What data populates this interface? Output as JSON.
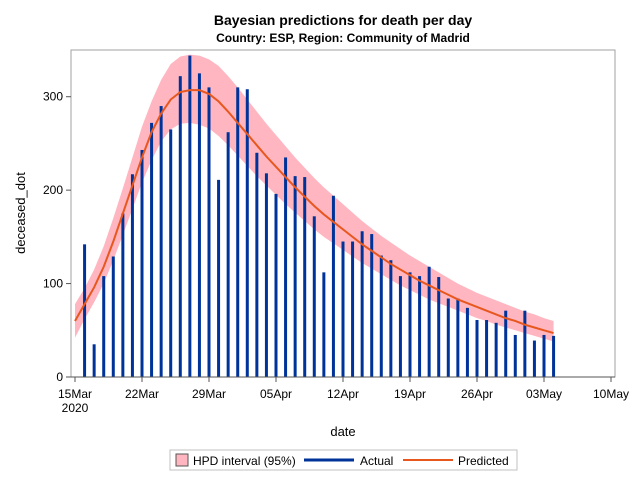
{
  "chart_data": {
    "type": "bar+line",
    "title": "Bayesian predictions for death per day",
    "subtitle": "Country: ESP, Region: Community of Madrid",
    "xlabel": "date",
    "ylabel": "deceased_dot",
    "ylim": [
      0,
      350
    ],
    "xlim": [
      "2020-03-15",
      "2020-05-10"
    ],
    "yticks": [
      0,
      100,
      200,
      300
    ],
    "xticks": [
      {
        "date": "2020-03-15",
        "label": "15Mar",
        "sub": "2020"
      },
      {
        "date": "2020-03-22",
        "label": "22Mar"
      },
      {
        "date": "2020-03-29",
        "label": "29Mar"
      },
      {
        "date": "2020-04-05",
        "label": "05Apr"
      },
      {
        "date": "2020-04-12",
        "label": "12Apr"
      },
      {
        "date": "2020-04-19",
        "label": "19Apr"
      },
      {
        "date": "2020-04-26",
        "label": "26Apr"
      },
      {
        "date": "2020-05-03",
        "label": "03May"
      },
      {
        "date": "2020-05-10",
        "label": "10May"
      }
    ],
    "dates": [
      "2020-03-15",
      "2020-03-16",
      "2020-03-17",
      "2020-03-18",
      "2020-03-19",
      "2020-03-20",
      "2020-03-21",
      "2020-03-22",
      "2020-03-23",
      "2020-03-24",
      "2020-03-25",
      "2020-03-26",
      "2020-03-27",
      "2020-03-28",
      "2020-03-29",
      "2020-03-30",
      "2020-03-31",
      "2020-04-01",
      "2020-04-02",
      "2020-04-03",
      "2020-04-04",
      "2020-04-05",
      "2020-04-06",
      "2020-04-07",
      "2020-04-08",
      "2020-04-09",
      "2020-04-10",
      "2020-04-11",
      "2020-04-12",
      "2020-04-13",
      "2020-04-14",
      "2020-04-15",
      "2020-04-16",
      "2020-04-17",
      "2020-04-18",
      "2020-04-19",
      "2020-04-20",
      "2020-04-21",
      "2020-04-22",
      "2020-04-23",
      "2020-04-24",
      "2020-04-25",
      "2020-04-26",
      "2020-04-27",
      "2020-04-28",
      "2020-04-29",
      "2020-04-30",
      "2020-05-01",
      "2020-05-02",
      "2020-05-03",
      "2020-05-04"
    ],
    "series": [
      {
        "name": "Actual",
        "type": "bar",
        "color": "#003399",
        "values": [
          null,
          142,
          35,
          108,
          129,
          175,
          217,
          243,
          272,
          290,
          265,
          322,
          344,
          325,
          310,
          211,
          262,
          310,
          308,
          240,
          218,
          196,
          235,
          215,
          214,
          172,
          112,
          194,
          145,
          145,
          156,
          153,
          130,
          125,
          108,
          112,
          108,
          118,
          107,
          84,
          84,
          74,
          61,
          61,
          58,
          71,
          45,
          71,
          39,
          45,
          44
        ]
      },
      {
        "name": "Predicted",
        "type": "line",
        "color": "#e8571e",
        "values": [
          60,
          78,
          96,
          118,
          145,
          175,
          205,
          235,
          262,
          282,
          297,
          305,
          307,
          307,
          303,
          295,
          284,
          272,
          260,
          248,
          236,
          225,
          214,
          203,
          193,
          183,
          174,
          166,
          158,
          150,
          142,
          135,
          128,
          121,
          115,
          109,
          103,
          98,
          93,
          88,
          83,
          79,
          75,
          71,
          67,
          63,
          60,
          56,
          53,
          50,
          47
        ]
      },
      {
        "name": "HPD interval (95%)",
        "type": "band",
        "color": "#ffb6c1",
        "lower": [
          42,
          62,
          80,
          100,
          125,
          152,
          180,
          208,
          232,
          252,
          265,
          271,
          272,
          270,
          266,
          258,
          248,
          237,
          226,
          215,
          205,
          195,
          185,
          176,
          167,
          158,
          150,
          143,
          136,
          129,
          122,
          116,
          110,
          104,
          98,
          93,
          88,
          83,
          79,
          75,
          71,
          67,
          63,
          60,
          56,
          53,
          50,
          47,
          44,
          41,
          38
        ],
        "upper": [
          78,
          95,
          115,
          140,
          170,
          202,
          235,
          268,
          295,
          318,
          335,
          343,
          345,
          344,
          340,
          333,
          322,
          310,
          297,
          284,
          271,
          259,
          247,
          235,
          224,
          213,
          203,
          194,
          185,
          176,
          167,
          159,
          151,
          144,
          137,
          130,
          124,
          118,
          112,
          106,
          100,
          95,
          90,
          86,
          82,
          78,
          74,
          70,
          67,
          63,
          60
        ]
      }
    ],
    "legend": {
      "position": "bottom",
      "items": [
        "HPD interval (95%)",
        "Actual",
        "Predicted"
      ]
    }
  }
}
